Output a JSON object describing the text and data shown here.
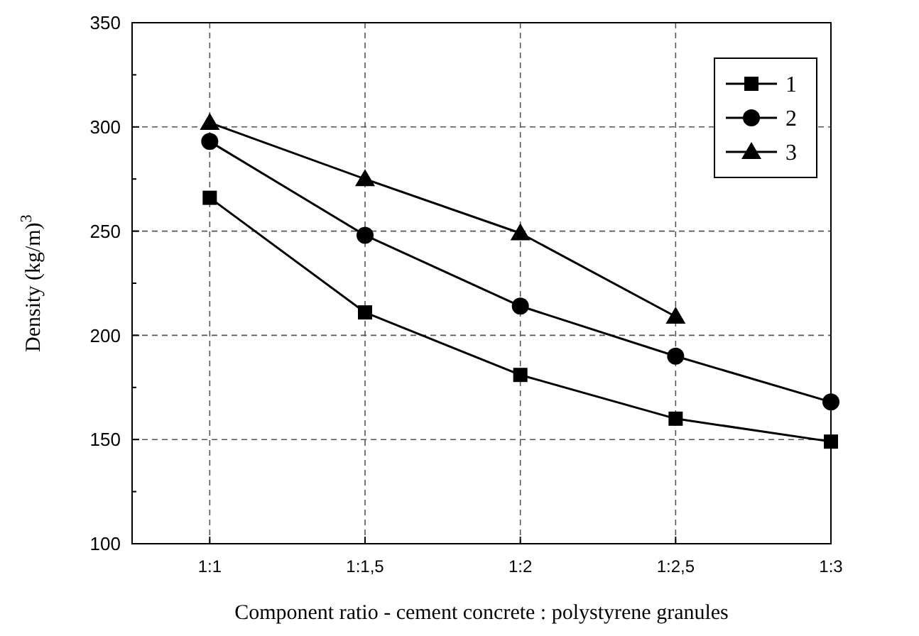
{
  "chart_data": {
    "type": "line",
    "xlabel": "Component ratio - cement concrete : polystyrene granules",
    "ylabel": "Density (kg/m)$^{3}$",
    "categories": [
      "1:1",
      "1:1,5",
      "1:2",
      "1:2,5",
      "1:3"
    ],
    "series": [
      {
        "name": "1",
        "color": "#000000",
        "marker": "square",
        "values": [
          266,
          211,
          181,
          160,
          149
        ]
      },
      {
        "name": "2",
        "color": "#000000",
        "marker": "circle",
        "values": [
          293,
          248,
          214,
          190,
          168
        ]
      },
      {
        "name": "3",
        "color": "#000000",
        "marker": "triangle",
        "values": [
          302,
          275,
          249,
          209,
          null
        ]
      }
    ],
    "ylim": [
      100,
      350
    ],
    "yticks": [
      100,
      {
        "value": 125,
        "label": null
      },
      150,
      {
        "value": 175,
        "label": null
      },
      200,
      {
        "value": 225,
        "label": null
      },
      250,
      {
        "value": 275,
        "label": null
      },
      300,
      {
        "value": 325,
        "label": null
      },
      350
    ],
    "grid": true,
    "legend": "top right",
    "line_style": "solid"
  }
}
